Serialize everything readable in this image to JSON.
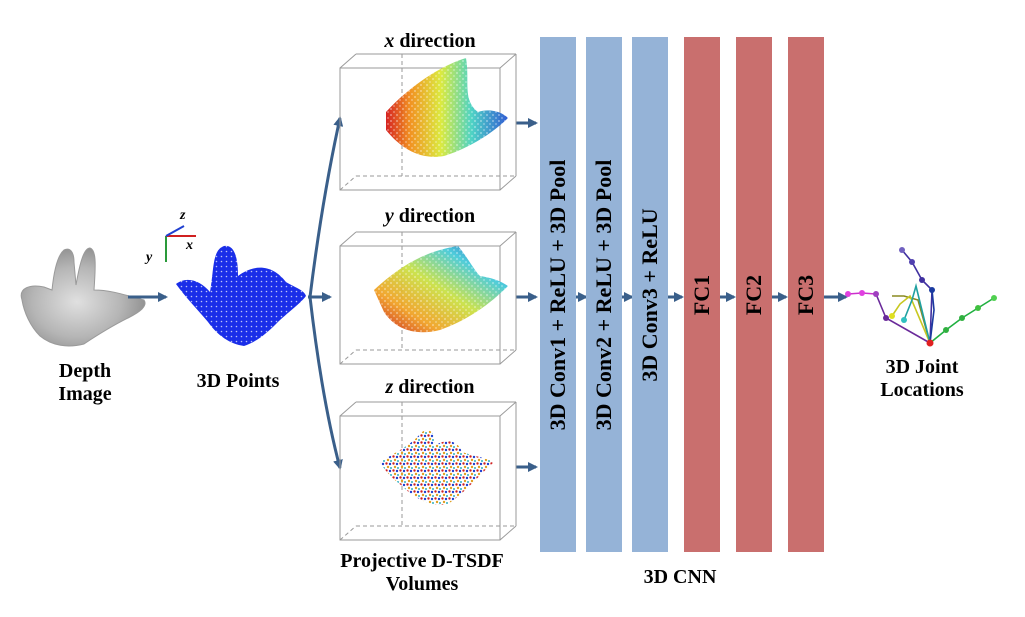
{
  "labels": {
    "depth_image_line1": "Depth",
    "depth_image_line2": "Image",
    "points": "3D Points",
    "joint_line1": "3D Joint",
    "joint_line2": "Locations",
    "volumes_line1": "Projective D-TSDF",
    "volumes_line2": "Volumes",
    "cnn": "3D CNN"
  },
  "directions": [
    {
      "axis": "x",
      "word": "direction"
    },
    {
      "axis": "y",
      "word": "direction"
    },
    {
      "axis": "z",
      "word": "direction"
    }
  ],
  "axes_gizmo": {
    "x": "x",
    "y": "y",
    "z": "z"
  },
  "layers": [
    {
      "label": "3D Conv1 + ReLU + 3D Pool",
      "color": "#95b3d7"
    },
    {
      "label": "3D Conv2 + ReLU + 3D Pool",
      "color": "#95b3d7"
    },
    {
      "label": "3D Conv3 + ReLU",
      "color": "#95b3d7"
    },
    {
      "label": "FC1",
      "color": "#c96f6e"
    },
    {
      "label": "FC2",
      "color": "#c96f6e"
    },
    {
      "label": "FC3",
      "color": "#c96f6e"
    }
  ],
  "colors": {
    "arrow": "#3a5f8a",
    "points": "#1428e6",
    "layer_blue": "#95b3d7",
    "layer_red": "#c96f6e"
  }
}
